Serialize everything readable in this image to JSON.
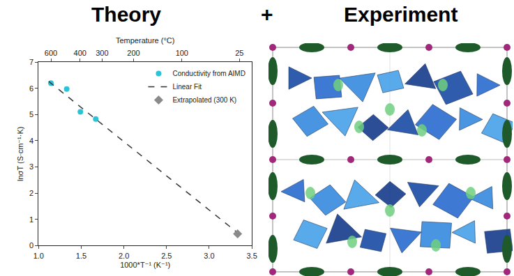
{
  "header": {
    "left": "Theory",
    "joiner": "+",
    "right": "Experiment"
  },
  "chart_data": {
    "type": "scatter",
    "xlabel": "1000*T⁻¹ (K⁻¹)",
    "ylabel": "lnσT (S·cm⁻¹·K)",
    "x2label": "Temperature (°C)",
    "xlim": [
      1.0,
      3.5
    ],
    "xticks": [
      {
        "value": 1,
        "label": "1.0"
      },
      1.5,
      {
        "value": 2,
        "label": "2.0"
      },
      2.5,
      {
        "value": 3,
        "label": "3.0"
      },
      3.5
    ],
    "x2ticks": [
      {
        "value": 1.145,
        "label": "600"
      },
      {
        "value": 1.486,
        "label": "400"
      },
      {
        "value": 1.745,
        "label": "300"
      },
      {
        "value": 2.113,
        "label": "200"
      },
      {
        "value": 2.68,
        "label": "100"
      },
      {
        "value": 3.354,
        "label": "25"
      }
    ],
    "ylim": [
      0,
      7
    ],
    "yticks": [
      0,
      1,
      2,
      3,
      4,
      5,
      6,
      7
    ],
    "grid": false,
    "legend": "upper right",
    "series": [
      {
        "name": "Conductivity from AIMD",
        "type": "scatter",
        "marker": "circle",
        "color": "#2cc3d6",
        "x": [
          1.145,
          1.33,
          1.49,
          1.67
        ],
        "values": [
          6.2,
          5.97,
          5.1,
          4.83
        ]
      },
      {
        "name": "Linear Fit",
        "type": "line",
        "line_style": "dash",
        "color": "#333333",
        "x": [
          1.12,
          3.36
        ],
        "values": [
          6.26,
          0.42
        ]
      },
      {
        "name": "Extrapolated (300 K)",
        "type": "scatter",
        "marker": "diamond",
        "color": "#8a8a8a",
        "x": [
          3.333
        ],
        "values": [
          0.45
        ]
      }
    ]
  }
}
